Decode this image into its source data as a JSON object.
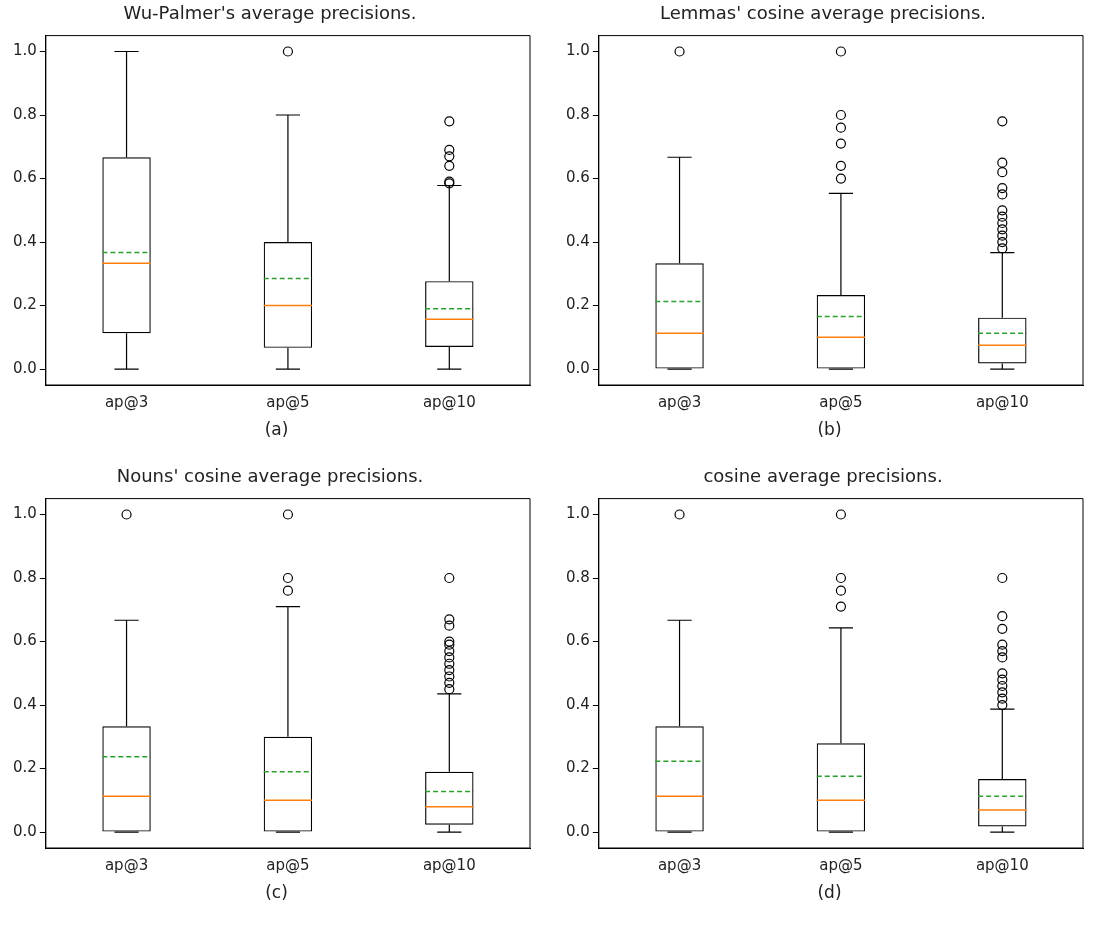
{
  "chart_data": [
    {
      "type": "box",
      "title": "Wu-Palmer's average precisions.",
      "categories": [
        "ap@3",
        "ap@5",
        "ap@10"
      ],
      "ylim": [
        -0.05,
        1.05
      ],
      "yticks": [
        {
          "value": 0,
          "label": "0.0"
        },
        {
          "value": 0.2,
          "label": "0.2"
        },
        {
          "value": 0.4,
          "label": "0.4"
        },
        {
          "value": 0.6,
          "label": "0.6"
        },
        {
          "value": 0.8,
          "label": "0.8"
        },
        {
          "value": 1,
          "label": "1.0"
        }
      ],
      "grid": false,
      "legend": false,
      "marker": "circle",
      "annotations": [
        "(a)"
      ],
      "boxes": [
        {
          "low": 0,
          "q1": 0.113,
          "median": 0.333,
          "q3": 0.667,
          "high": 1.0,
          "mean": 0.367
        },
        {
          "low": 0,
          "q1": 0.067,
          "median": 0.2,
          "q3": 0.4,
          "high": 0.8,
          "mean": 0.285,
          "outliers": [
            1.0
          ]
        },
        {
          "low": 0,
          "q1": 0.07,
          "median": 0.157,
          "q3": 0.277,
          "high": 0.578,
          "mean": 0.19,
          "outliers": [
            0.585,
            0.59,
            0.64,
            0.67,
            0.69,
            0.78
          ]
        }
      ]
    },
    {
      "type": "box",
      "title": "Lemmas' cosine average precisions.",
      "categories": [
        "ap@3",
        "ap@5",
        "ap@10"
      ],
      "ylim": [
        -0.05,
        1.05
      ],
      "yticks": [
        {
          "value": 0,
          "label": "0.0"
        },
        {
          "value": 0.2,
          "label": "0.2"
        },
        {
          "value": 0.4,
          "label": "0.4"
        },
        {
          "value": 0.6,
          "label": "0.6"
        },
        {
          "value": 0.8,
          "label": "0.8"
        },
        {
          "value": 1,
          "label": "1.0"
        }
      ],
      "grid": false,
      "legend": false,
      "marker": "circle",
      "annotations": [
        "(b)"
      ],
      "boxes": [
        {
          "low": 0,
          "q1": 0,
          "median": 0.113,
          "q3": 0.333,
          "high": 0.667,
          "mean": 0.213,
          "outliers": [
            1.0
          ]
        },
        {
          "low": 0,
          "q1": 0,
          "median": 0.1,
          "q3": 0.233,
          "high": 0.553,
          "mean": 0.166,
          "outliers": [
            0.6,
            0.64,
            0.71,
            0.76,
            0.8,
            1.0
          ]
        },
        {
          "low": 0,
          "q1": 0.018,
          "median": 0.075,
          "q3": 0.162,
          "high": 0.367,
          "mean": 0.113,
          "outliers": [
            0.38,
            0.4,
            0.42,
            0.44,
            0.46,
            0.48,
            0.5,
            0.55,
            0.57,
            0.62,
            0.65,
            0.78
          ]
        }
      ]
    },
    {
      "type": "box",
      "title": "Nouns' cosine average precisions.",
      "categories": [
        "ap@3",
        "ap@5",
        "ap@10"
      ],
      "ylim": [
        -0.05,
        1.05
      ],
      "yticks": [
        {
          "value": 0,
          "label": "0.0"
        },
        {
          "value": 0.2,
          "label": "0.2"
        },
        {
          "value": 0.4,
          "label": "0.4"
        },
        {
          "value": 0.6,
          "label": "0.6"
        },
        {
          "value": 0.8,
          "label": "0.8"
        },
        {
          "value": 1,
          "label": "1.0"
        }
      ],
      "grid": false,
      "legend": false,
      "marker": "circle",
      "annotations": [
        "(c)"
      ],
      "boxes": [
        {
          "low": 0,
          "q1": 0,
          "median": 0.113,
          "q3": 0.333,
          "high": 0.667,
          "mean": 0.237,
          "outliers": [
            1.0
          ]
        },
        {
          "low": 0,
          "q1": 0,
          "median": 0.1,
          "q3": 0.3,
          "high": 0.71,
          "mean": 0.19,
          "outliers": [
            0.76,
            0.8,
            1.0
          ]
        },
        {
          "low": 0,
          "q1": 0.023,
          "median": 0.08,
          "q3": 0.19,
          "high": 0.435,
          "mean": 0.128,
          "outliers": [
            0.45,
            0.47,
            0.49,
            0.51,
            0.53,
            0.55,
            0.57,
            0.59,
            0.6,
            0.65,
            0.67,
            0.8
          ]
        }
      ]
    },
    {
      "type": "box",
      "title": "cosine average precisions.",
      "categories": [
        "ap@3",
        "ap@5",
        "ap@10"
      ],
      "ylim": [
        -0.05,
        1.05
      ],
      "yticks": [
        {
          "value": 0,
          "label": "0.0"
        },
        {
          "value": 0.2,
          "label": "0.2"
        },
        {
          "value": 0.4,
          "label": "0.4"
        },
        {
          "value": 0.6,
          "label": "0.6"
        },
        {
          "value": 0.8,
          "label": "0.8"
        },
        {
          "value": 1,
          "label": "1.0"
        }
      ],
      "grid": false,
      "legend": false,
      "marker": "circle",
      "annotations": [
        "(d)"
      ],
      "boxes": [
        {
          "low": 0,
          "q1": 0,
          "median": 0.113,
          "q3": 0.333,
          "high": 0.667,
          "mean": 0.223,
          "outliers": [
            1.0
          ]
        },
        {
          "low": 0,
          "q1": 0,
          "median": 0.1,
          "q3": 0.28,
          "high": 0.643,
          "mean": 0.176,
          "outliers": [
            0.71,
            0.76,
            0.8,
            1.0
          ]
        },
        {
          "low": 0,
          "q1": 0.018,
          "median": 0.07,
          "q3": 0.167,
          "high": 0.387,
          "mean": 0.113,
          "outliers": [
            0.4,
            0.42,
            0.44,
            0.46,
            0.48,
            0.5,
            0.55,
            0.57,
            0.59,
            0.64,
            0.68,
            0.8
          ]
        }
      ]
    }
  ]
}
